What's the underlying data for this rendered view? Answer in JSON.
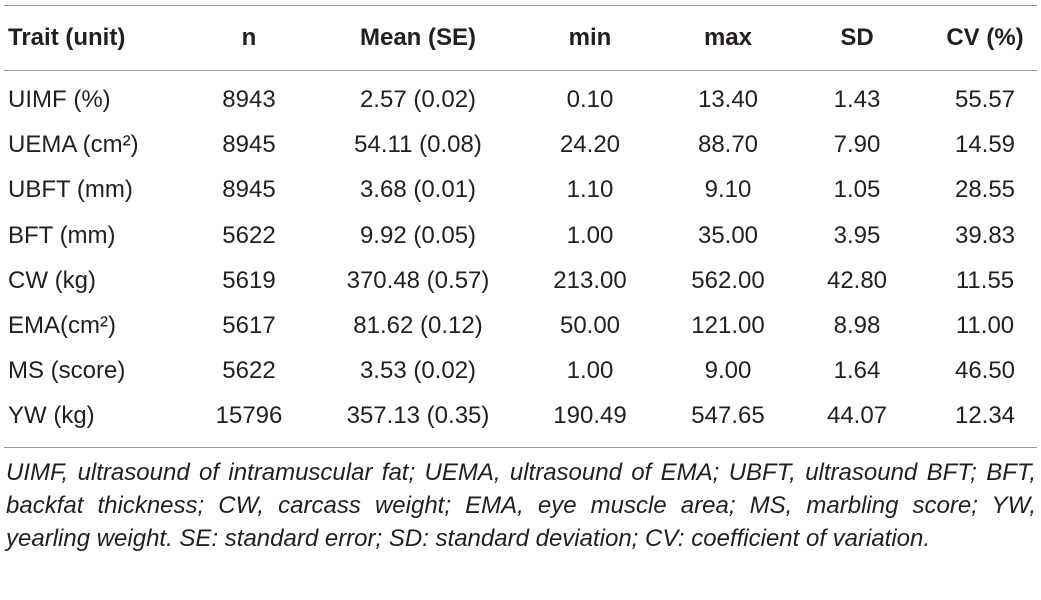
{
  "table": {
    "header": [
      "Trait (unit)",
      "n",
      "Mean (SE)",
      "min",
      "max",
      "SD",
      "CV (%)"
    ],
    "rows": [
      [
        "UIMF (%)",
        "8943",
        "2.57 (0.02)",
        "0.10",
        "13.40",
        "1.43",
        "55.57"
      ],
      [
        "UEMA (cm²)",
        "8945",
        "54.11 (0.08)",
        "24.20",
        "88.70",
        "7.90",
        "14.59"
      ],
      [
        "UBFT (mm)",
        "8945",
        "3.68 (0.01)",
        "1.10",
        "9.10",
        "1.05",
        "28.55"
      ],
      [
        "BFT (mm)",
        "5622",
        "9.92 (0.05)",
        "1.00",
        "35.00",
        "3.95",
        "39.83"
      ],
      [
        "CW (kg)",
        "5619",
        "370.48 (0.57)",
        "213.00",
        "562.00",
        "42.80",
        "11.55"
      ],
      [
        "EMA(cm²)",
        "5617",
        "81.62 (0.12)",
        "50.00",
        "121.00",
        "8.98",
        "11.00"
      ],
      [
        "MS (score)",
        "5622",
        "3.53 (0.02)",
        "1.00",
        "9.00",
        "1.64",
        "46.50"
      ],
      [
        "YW (kg)",
        "15796",
        "357.13 (0.35)",
        "190.49",
        "547.65",
        "44.07",
        "12.34"
      ]
    ],
    "footnote": "UIMF, ultrasound of intramuscular fat; UEMA, ultrasound of EMA; UBFT, ultrasound BFT; BFT, backfat thickness; CW, carcass weight; EMA, eye muscle area; MS, marbling score; YW, yearling weight. SE: standard error; SD: standard deviation; CV: coefficient of variation."
  }
}
